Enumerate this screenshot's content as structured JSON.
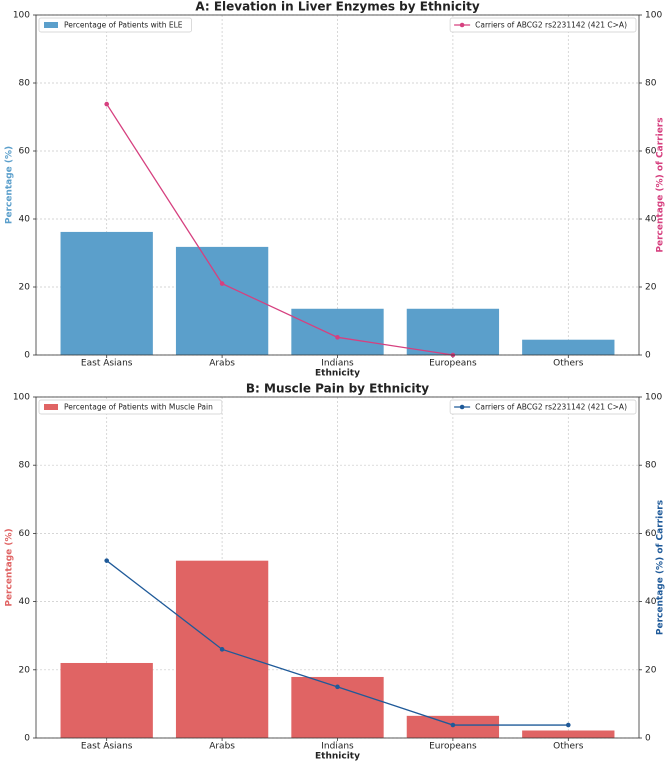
{
  "chart_data": [
    {
      "type": "bar",
      "title": "A: Elevation in Liver Enzymes by Ethnicity",
      "xlabel": "Ethnicity",
      "ylabel": "Percentage (%)",
      "y2label": "Percentage (%) of Carriers",
      "categories": [
        "East Asians",
        "Arabs",
        "Indians",
        "Europeans",
        "Others"
      ],
      "series": [
        {
          "name": "Percentage of Patients with ELE",
          "type": "bar",
          "color": "#5b9fcb",
          "values": [
            36.2,
            31.8,
            13.6,
            13.6,
            4.5
          ]
        },
        {
          "name": "Carriers of ABCG2 rs2231142 (421 C>A)",
          "type": "line",
          "axis": "y2",
          "color": "#d6407f",
          "values": [
            73.8,
            21,
            5.2,
            0,
            null
          ]
        }
      ],
      "ylim": [
        0,
        100
      ],
      "yticks": [
        0,
        20,
        40,
        60,
        80,
        100
      ],
      "y2lim": [
        0,
        100
      ],
      "y2ticks": [
        0,
        20,
        40,
        60,
        80,
        100
      ],
      "grid": true,
      "bar_legend_loc": "upper left",
      "line_legend_loc": "upper right"
    },
    {
      "type": "bar",
      "title": "B: Muscle Pain by Ethnicity",
      "xlabel": "Ethnicity",
      "ylabel": "Percentage (%)",
      "y2label": "Percentage (%) of Carriers",
      "categories": [
        "East Asians",
        "Arabs",
        "Indians",
        "Europeans",
        "Others"
      ],
      "series": [
        {
          "name": "Percentage of Patients with Muscle Pain",
          "type": "bar",
          "color": "#e06464",
          "values": [
            22,
            52,
            17.9,
            6.5,
            2.2
          ]
        },
        {
          "name": "Carriers of ABCG2 rs2231142 (421 C>A)",
          "type": "line",
          "axis": "y2",
          "color": "#1f5a99",
          "values": [
            52,
            26,
            15,
            3.8,
            3.8
          ]
        }
      ],
      "ylim": [
        0,
        100
      ],
      "yticks": [
        0,
        20,
        40,
        60,
        80,
        100
      ],
      "y2lim": [
        0,
        100
      ],
      "y2ticks": [
        0,
        20,
        40,
        60,
        80,
        100
      ],
      "grid": true,
      "bar_legend_loc": "upper left",
      "line_legend_loc": "upper right"
    }
  ]
}
